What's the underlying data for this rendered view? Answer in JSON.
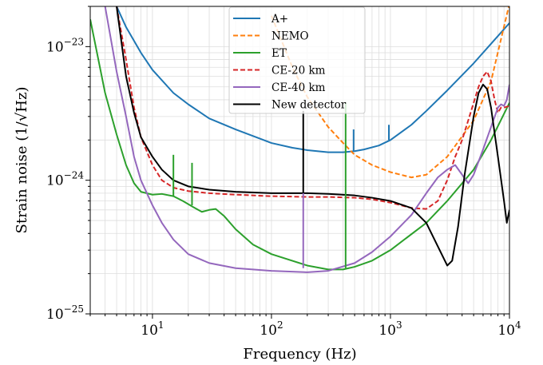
{
  "chart_data": {
    "type": "line",
    "xlabel": "Frequency (Hz)",
    "ylabel": "Strain noise (1/√Hz)",
    "xscale": "log",
    "yscale": "log",
    "xlim": [
      3,
      10000
    ],
    "ylim": [
      1e-25,
      2e-23
    ],
    "grid": true,
    "legend_position": "top-center",
    "x_ticks": [
      {
        "value": 10,
        "base": "10",
        "exp": "1"
      },
      {
        "value": 100,
        "base": "10",
        "exp": "2"
      },
      {
        "value": 1000,
        "base": "10",
        "exp": "3"
      },
      {
        "value": 10000,
        "base": "10",
        "exp": "4"
      }
    ],
    "y_ticks": [
      {
        "value": 1e-25,
        "base": "10",
        "exp": "−25"
      },
      {
        "value": 1e-24,
        "base": "10",
        "exp": "−24"
      },
      {
        "value": 1e-23,
        "base": "10",
        "exp": "−23"
      }
    ],
    "series": [
      {
        "name": "A+",
        "color": "#1f77b4",
        "dash": "solid",
        "points": [
          [
            5,
            2e-23
          ],
          [
            6,
            1.4e-23
          ],
          [
            8,
            9e-24
          ],
          [
            10,
            6.7e-24
          ],
          [
            15,
            4.5e-24
          ],
          [
            20,
            3.7e-24
          ],
          [
            30,
            2.9e-24
          ],
          [
            50,
            2.4e-24
          ],
          [
            80,
            2.05e-24
          ],
          [
            100,
            1.9e-24
          ],
          [
            150,
            1.75e-24
          ],
          [
            200,
            1.68e-24
          ],
          [
            300,
            1.62e-24
          ],
          [
            400,
            1.62e-24
          ],
          [
            500,
            1.65e-24
          ],
          [
            600,
            1.7e-24
          ],
          [
            800,
            1.82e-24
          ],
          [
            1000,
            2e-24
          ],
          [
            1500,
            2.6e-24
          ],
          [
            2000,
            3.3e-24
          ],
          [
            3000,
            4.7e-24
          ],
          [
            5000,
            7.5e-24
          ],
          [
            7000,
            1.05e-23
          ],
          [
            10000,
            1.5e-23
          ]
        ]
      },
      {
        "name": "NEMO",
        "color": "#ff7f0e",
        "dash": "dashed",
        "points": [
          [
            100,
            1.7e-23
          ],
          [
            150,
            7e-24
          ],
          [
            200,
            4.2e-24
          ],
          [
            300,
            2.5e-24
          ],
          [
            400,
            1.9e-24
          ],
          [
            500,
            1.55e-24
          ],
          [
            700,
            1.3e-24
          ],
          [
            1000,
            1.15e-24
          ],
          [
            1500,
            1.05e-24
          ],
          [
            2000,
            1.1e-24
          ],
          [
            3000,
            1.5e-24
          ],
          [
            5000,
            2.8e-24
          ],
          [
            7000,
            5.5e-24
          ],
          [
            10000,
            2.1e-23
          ]
        ]
      },
      {
        "name": "ET",
        "color": "#2ca02c",
        "dash": "solid",
        "points": [
          [
            3,
            1.6e-23
          ],
          [
            4,
            4.5e-24
          ],
          [
            5,
            2.2e-24
          ],
          [
            6,
            1.3e-24
          ],
          [
            7,
            9.5e-25
          ],
          [
            8,
            8.2e-25
          ],
          [
            10,
            7.8e-25
          ],
          [
            12,
            7.9e-25
          ],
          [
            15,
            7.6e-25
          ],
          [
            18,
            7e-25
          ],
          [
            22,
            6.3e-25
          ],
          [
            26,
            5.8e-25
          ],
          [
            30,
            6e-25
          ],
          [
            34,
            6.1e-25
          ],
          [
            40,
            5.4e-25
          ],
          [
            50,
            4.3e-25
          ],
          [
            70,
            3.3e-25
          ],
          [
            100,
            2.8e-25
          ],
          [
            200,
            2.3e-25
          ],
          [
            300,
            2.15e-25
          ],
          [
            400,
            2.15e-25
          ],
          [
            500,
            2.25e-25
          ],
          [
            700,
            2.5e-25
          ],
          [
            1000,
            3e-25
          ],
          [
            2000,
            4.8e-25
          ],
          [
            3000,
            7e-25
          ],
          [
            5000,
            1.2e-24
          ],
          [
            7000,
            2e-24
          ],
          [
            10000,
            3.8e-24
          ]
        ]
      },
      {
        "name": "CE-20 km",
        "color": "#d62728",
        "dash": "dashed",
        "points": [
          [
            5,
            2e-23
          ],
          [
            6,
            8e-24
          ],
          [
            7,
            3.5e-24
          ],
          [
            8,
            2.1e-24
          ],
          [
            10,
            1.3e-24
          ],
          [
            12,
            1e-24
          ],
          [
            15,
            8.8e-25
          ],
          [
            20,
            8.3e-25
          ],
          [
            30,
            8e-25
          ],
          [
            50,
            7.8e-25
          ],
          [
            100,
            7.6e-25
          ],
          [
            200,
            7.5e-25
          ],
          [
            300,
            7.5e-25
          ],
          [
            500,
            7.4e-25
          ],
          [
            700,
            7.2e-25
          ],
          [
            1000,
            6.8e-25
          ],
          [
            1500,
            6.2e-25
          ],
          [
            2000,
            6.1e-25
          ],
          [
            2500,
            7e-25
          ],
          [
            3000,
            1e-24
          ],
          [
            3500,
            1.5e-24
          ],
          [
            4000,
            2e-24
          ],
          [
            4500,
            2.8e-24
          ],
          [
            5000,
            3.8e-24
          ],
          [
            5500,
            5e-24
          ],
          [
            6000,
            6e-24
          ],
          [
            6500,
            6.5e-24
          ],
          [
            7000,
            5.5e-24
          ],
          [
            7500,
            4e-24
          ],
          [
            8000,
            3.2e-24
          ],
          [
            8500,
            3.5e-24
          ],
          [
            9000,
            3.5e-24
          ],
          [
            10000,
            3.6e-24
          ]
        ]
      },
      {
        "name": "CE-40 km",
        "color": "#9467bd",
        "dash": "solid",
        "points": [
          [
            4,
            2e-23
          ],
          [
            5,
            6.5e-24
          ],
          [
            6,
            3e-24
          ],
          [
            7,
            1.5e-24
          ],
          [
            8,
            1e-24
          ],
          [
            10,
            6.5e-25
          ],
          [
            12,
            4.8e-25
          ],
          [
            15,
            3.6e-25
          ],
          [
            20,
            2.8e-25
          ],
          [
            30,
            2.4e-25
          ],
          [
            50,
            2.2e-25
          ],
          [
            100,
            2.1e-25
          ],
          [
            200,
            2.05e-25
          ],
          [
            300,
            2.1e-25
          ],
          [
            500,
            2.4e-25
          ],
          [
            700,
            2.9e-25
          ],
          [
            1000,
            3.8e-25
          ],
          [
            1500,
            5.5e-25
          ],
          [
            2000,
            8e-25
          ],
          [
            2500,
            1.05e-24
          ],
          [
            3000,
            1.2e-24
          ],
          [
            3500,
            1.3e-24
          ],
          [
            4000,
            1.1e-24
          ],
          [
            4500,
            9.5e-25
          ],
          [
            5000,
            1.1e-24
          ],
          [
            6000,
            1.7e-24
          ],
          [
            7000,
            2.5e-24
          ],
          [
            8000,
            3.5e-24
          ],
          [
            8500,
            3.7e-24
          ],
          [
            9000,
            3.6e-24
          ],
          [
            9500,
            4e-24
          ],
          [
            10000,
            5.2e-24
          ]
        ]
      },
      {
        "name": "New detector",
        "color": "#000000",
        "dash": "solid",
        "points": [
          [
            5,
            2e-23
          ],
          [
            6,
            6e-24
          ],
          [
            7,
            3.2e-24
          ],
          [
            8,
            2.1e-24
          ],
          [
            10,
            1.5e-24
          ],
          [
            12,
            1.2e-24
          ],
          [
            15,
            1e-24
          ],
          [
            20,
            9e-25
          ],
          [
            30,
            8.5e-25
          ],
          [
            50,
            8.2e-25
          ],
          [
            100,
            8e-25
          ],
          [
            200,
            8e-25
          ],
          [
            300,
            7.9e-25
          ],
          [
            500,
            7.7e-25
          ],
          [
            700,
            7.4e-25
          ],
          [
            1000,
            7e-25
          ],
          [
            1500,
            6.2e-25
          ],
          [
            2000,
            4.8e-25
          ],
          [
            2500,
            3.2e-25
          ],
          [
            3000,
            2.3e-25
          ],
          [
            3300,
            2.5e-25
          ],
          [
            3700,
            4.5e-25
          ],
          [
            4200,
            1.1e-24
          ],
          [
            5000,
            3e-24
          ],
          [
            5500,
            4.5e-24
          ],
          [
            6000,
            5.2e-24
          ],
          [
            6500,
            4.8e-24
          ],
          [
            7000,
            3.5e-24
          ],
          [
            8000,
            1.5e-24
          ],
          [
            9000,
            7e-25
          ],
          [
            9500,
            4.8e-25
          ],
          [
            10000,
            6e-25
          ]
        ]
      }
    ],
    "spikes": [
      {
        "series": "New detector",
        "x": 185,
        "lo": 8e-25,
        "hi": 3.3e-24
      },
      {
        "series": "CE-40 km",
        "x": 185,
        "lo": 2.2e-25,
        "hi": 8e-25
      },
      {
        "series": "ET",
        "x": 15,
        "lo": 7.6e-25,
        "hi": 1.55e-24
      },
      {
        "series": "ET",
        "x": 21.5,
        "lo": 6.5e-25,
        "hi": 1.35e-24
      },
      {
        "series": "ET",
        "x": 420,
        "lo": 2.2e-25,
        "hi": 3.8e-24
      },
      {
        "series": "A+",
        "x": 490,
        "lo": 1.64e-24,
        "hi": 2.4e-24
      },
      {
        "series": "A+",
        "x": 970,
        "lo": 2e-24,
        "hi": 2.6e-24
      }
    ]
  }
}
